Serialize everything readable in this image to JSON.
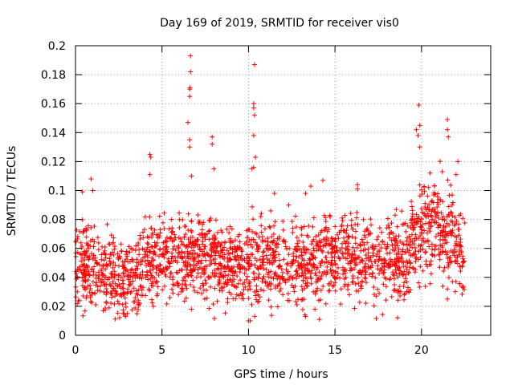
{
  "chart_data": {
    "type": "scatter",
    "title": "Day 169 of 2019, SRMTID for receiver vis0",
    "xlabel": "GPS time / hours",
    "ylabel": "SRMTID / TECUs",
    "xlim": [
      0,
      24
    ],
    "ylim": [
      0,
      0.2
    ],
    "x_ticks": [
      0,
      5,
      10,
      15,
      20
    ],
    "y_ticks": [
      0,
      0.02,
      0.04,
      0.06,
      0.08,
      0.1,
      0.12,
      0.14,
      0.16,
      0.18,
      0.2
    ],
    "x_tick_labels": [
      "0",
      "5",
      "10",
      "15",
      "20"
    ],
    "y_tick_labels": [
      "0",
      "0.02",
      "0.04",
      "0.06",
      "0.08",
      "0.1",
      "0.12",
      "0.14",
      "0.16",
      "0.18",
      "0.2"
    ],
    "grid": true,
    "marker": "+",
    "color": "#ff0000",
    "series_profile": {
      "name": "vis0",
      "x_range": [
        0,
        22.5
      ],
      "baseline": [
        [
          0,
          0.048
        ],
        [
          1,
          0.045
        ],
        [
          2,
          0.04
        ],
        [
          3,
          0.038
        ],
        [
          4,
          0.05
        ],
        [
          5,
          0.055
        ],
        [
          6,
          0.052
        ],
        [
          7,
          0.056
        ],
        [
          8,
          0.052
        ],
        [
          9,
          0.05
        ],
        [
          10,
          0.05
        ],
        [
          11,
          0.052
        ],
        [
          12,
          0.048
        ],
        [
          13,
          0.05
        ],
        [
          14,
          0.052
        ],
        [
          15,
          0.055
        ],
        [
          16,
          0.056
        ],
        [
          17,
          0.052
        ],
        [
          18,
          0.05
        ],
        [
          19,
          0.052
        ],
        [
          20,
          0.075
        ],
        [
          21,
          0.075
        ],
        [
          22,
          0.062
        ],
        [
          22.5,
          0.058
        ]
      ],
      "spread": 0.014,
      "point_count": 2200,
      "outliers": [
        [
          0.4,
          0.099
        ],
        [
          0.9,
          0.108
        ],
        [
          1.0,
          0.1
        ],
        [
          4.3,
          0.125
        ],
        [
          4.35,
          0.123
        ],
        [
          4.3,
          0.111
        ],
        [
          6.5,
          0.147
        ],
        [
          6.6,
          0.165
        ],
        [
          6.6,
          0.17
        ],
        [
          6.62,
          0.171
        ],
        [
          6.65,
          0.182
        ],
        [
          6.65,
          0.193
        ],
        [
          6.6,
          0.135
        ],
        [
          6.6,
          0.13
        ],
        [
          6.7,
          0.11
        ],
        [
          7.9,
          0.137
        ],
        [
          7.9,
          0.132
        ],
        [
          8.0,
          0.115
        ],
        [
          10.3,
          0.16
        ],
        [
          10.3,
          0.157
        ],
        [
          10.35,
          0.152
        ],
        [
          10.35,
          0.187
        ],
        [
          10.3,
          0.138
        ],
        [
          10.4,
          0.123
        ],
        [
          10.2,
          0.115
        ],
        [
          10.3,
          0.116
        ],
        [
          11.5,
          0.098
        ],
        [
          13.3,
          0.098
        ],
        [
          13.6,
          0.103
        ],
        [
          14.3,
          0.107
        ],
        [
          16.3,
          0.104
        ],
        [
          16.3,
          0.101
        ],
        [
          19.7,
          0.142
        ],
        [
          19.8,
          0.138
        ],
        [
          19.85,
          0.159
        ],
        [
          19.9,
          0.13
        ],
        [
          21.5,
          0.149
        ],
        [
          21.5,
          0.142
        ],
        [
          21.55,
          0.137
        ],
        [
          22.1,
          0.12
        ],
        [
          22.0,
          0.111
        ],
        [
          21.2,
          0.113
        ],
        [
          20.5,
          0.112
        ],
        [
          19.9,
          0.145
        ],
        [
          21.5,
          0.032
        ],
        [
          21.5,
          0.025
        ],
        [
          10.0,
          0.01
        ],
        [
          10.1,
          0.01
        ],
        [
          14.1,
          0.011
        ],
        [
          13.3,
          0.013
        ],
        [
          1.6,
          0.017
        ],
        [
          2.8,
          0.015
        ],
        [
          4.5,
          0.02
        ],
        [
          6.7,
          0.018
        ]
      ]
    }
  }
}
